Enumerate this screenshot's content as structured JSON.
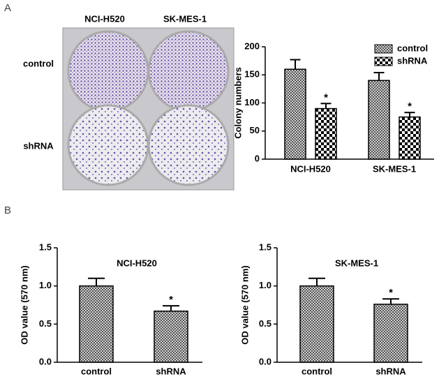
{
  "panel_labels": [
    "A",
    "B"
  ],
  "plate_image": {
    "columns": [
      "NCI-H520",
      "SK-MES-1"
    ],
    "rows": [
      "control",
      "shRNA"
    ]
  },
  "chart_data": [
    {
      "type": "bar",
      "y_label": "Colony numbers",
      "categories": [
        "NCI-H520",
        "SK-MES-1"
      ],
      "series": [
        {
          "name": "control",
          "pattern": "fine",
          "values": [
            160,
            140
          ],
          "errors": [
            17,
            14
          ],
          "annotations": [
            null,
            null
          ]
        },
        {
          "name": "shRNA",
          "pattern": "checker",
          "values": [
            90,
            75
          ],
          "errors": [
            9,
            8
          ],
          "annotations": [
            "*",
            "*"
          ]
        }
      ],
      "ylim": [
        0,
        200
      ],
      "yticks": [
        0,
        50,
        100,
        150,
        200
      ],
      "legend": "upper right"
    },
    {
      "type": "bar",
      "title": "NCI-H520",
      "y_label": "OD value (570 nm)",
      "categories": [
        "control",
        "shRNA"
      ],
      "pattern": "fine",
      "values": [
        1.0,
        0.67
      ],
      "errors": [
        0.1,
        0.07
      ],
      "annotations": [
        null,
        "*"
      ],
      "ylim": [
        0,
        1.5
      ],
      "yticks": [
        {
          "value": 0,
          "label": "0.0"
        },
        {
          "value": 0.5,
          "label": "0.5"
        },
        {
          "value": 1,
          "label": "1.0"
        },
        {
          "value": 1.5,
          "label": "1.5"
        }
      ]
    },
    {
      "type": "bar",
      "title": "SK-MES-1",
      "y_label": "OD value (570 nm)",
      "categories": [
        "control",
        "shRNA"
      ],
      "pattern": "fine",
      "values": [
        1.0,
        0.76
      ],
      "errors": [
        0.1,
        0.07
      ],
      "annotations": [
        null,
        "*"
      ],
      "ylim": [
        0,
        1.5
      ],
      "yticks": [
        {
          "value": 0,
          "label": "0.0"
        },
        {
          "value": 0.5,
          "label": "0.5"
        },
        {
          "value": 1,
          "label": "1.0"
        },
        {
          "value": 1.5,
          "label": "1.5"
        }
      ]
    }
  ]
}
